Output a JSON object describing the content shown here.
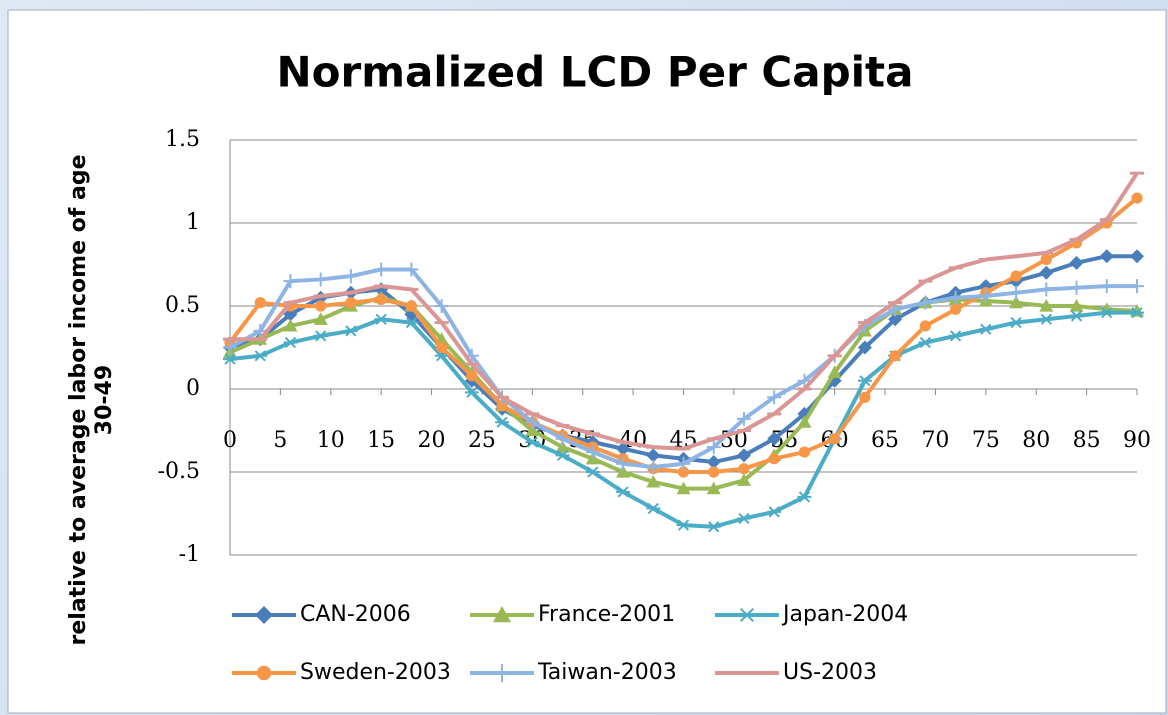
{
  "chart_data": {
    "type": "line",
    "title": "Normalized LCD Per Capita",
    "ylabel_lines": [
      "relative to average labor income of age",
      "30-49"
    ],
    "x": [
      0,
      3,
      6,
      9,
      12,
      15,
      18,
      21,
      24,
      27,
      30,
      33,
      36,
      39,
      42,
      45,
      48,
      51,
      54,
      57,
      60,
      63,
      66,
      69,
      72,
      75,
      78,
      81,
      84,
      87,
      90
    ],
    "xlim": [
      0,
      90
    ],
    "xticks": [
      0,
      5,
      10,
      15,
      20,
      25,
      30,
      35,
      40,
      45,
      50,
      55,
      60,
      65,
      70,
      75,
      80,
      85,
      90
    ],
    "ylim": [
      -1,
      1.5
    ],
    "yticks": [
      -1,
      -0.5,
      0,
      0.5,
      1,
      1.5
    ],
    "grid": true,
    "series": [
      {
        "name": "CAN-2006",
        "color": "#4a7ebb",
        "marker": "diamond",
        "values": [
          0.25,
          0.3,
          0.45,
          0.55,
          0.58,
          0.6,
          0.45,
          0.25,
          0.05,
          -0.12,
          -0.22,
          -0.28,
          -0.32,
          -0.36,
          -0.4,
          -0.42,
          -0.44,
          -0.4,
          -0.3,
          -0.15,
          0.05,
          0.25,
          0.42,
          0.52,
          0.58,
          0.62,
          0.65,
          0.7,
          0.76,
          0.8,
          0.8
        ]
      },
      {
        "name": "France-2001",
        "color": "#98b954",
        "marker": "triangle",
        "values": [
          0.22,
          0.3,
          0.38,
          0.42,
          0.5,
          0.55,
          0.5,
          0.3,
          0.1,
          -0.1,
          -0.25,
          -0.35,
          -0.42,
          -0.5,
          -0.56,
          -0.6,
          -0.6,
          -0.55,
          -0.4,
          -0.2,
          0.1,
          0.35,
          0.48,
          0.52,
          0.54,
          0.53,
          0.52,
          0.5,
          0.5,
          0.48,
          0.47
        ]
      },
      {
        "name": "Japan-2004",
        "color": "#4bacc6",
        "marker": "asterisk",
        "values": [
          0.18,
          0.2,
          0.28,
          0.32,
          0.35,
          0.42,
          0.4,
          0.2,
          -0.02,
          -0.2,
          -0.32,
          -0.4,
          -0.5,
          -0.62,
          -0.72,
          -0.82,
          -0.83,
          -0.78,
          -0.74,
          -0.65,
          -0.3,
          0.05,
          0.2,
          0.28,
          0.32,
          0.36,
          0.4,
          0.42,
          0.44,
          0.46,
          0.46
        ]
      },
      {
        "name": "Sweden-2003",
        "color": "#f79646",
        "marker": "circle",
        "values": [
          0.28,
          0.52,
          0.5,
          0.5,
          0.52,
          0.54,
          0.5,
          0.25,
          0.08,
          -0.1,
          -0.2,
          -0.28,
          -0.35,
          -0.42,
          -0.48,
          -0.5,
          -0.5,
          -0.48,
          -0.42,
          -0.38,
          -0.3,
          -0.05,
          0.2,
          0.38,
          0.48,
          0.58,
          0.68,
          0.78,
          0.88,
          1.0,
          1.15
        ]
      },
      {
        "name": "Taiwan-2003",
        "color": "#8eb4e3",
        "marker": "plus",
        "values": [
          0.25,
          0.35,
          0.65,
          0.66,
          0.68,
          0.72,
          0.72,
          0.5,
          0.2,
          -0.05,
          -0.2,
          -0.3,
          -0.38,
          -0.45,
          -0.47,
          -0.45,
          -0.35,
          -0.18,
          -0.05,
          0.05,
          0.2,
          0.38,
          0.48,
          0.52,
          0.55,
          0.56,
          0.58,
          0.6,
          0.61,
          0.62,
          0.62
        ]
      },
      {
        "name": "US-2003",
        "color": "#d99694",
        "marker": "dash",
        "values": [
          0.3,
          0.3,
          0.52,
          0.56,
          0.58,
          0.62,
          0.6,
          0.4,
          0.15,
          -0.05,
          -0.15,
          -0.22,
          -0.27,
          -0.32,
          -0.35,
          -0.36,
          -0.3,
          -0.25,
          -0.15,
          0,
          0.2,
          0.4,
          0.52,
          0.65,
          0.73,
          0.78,
          0.8,
          0.82,
          0.9,
          1.02,
          1.3
        ]
      }
    ]
  }
}
